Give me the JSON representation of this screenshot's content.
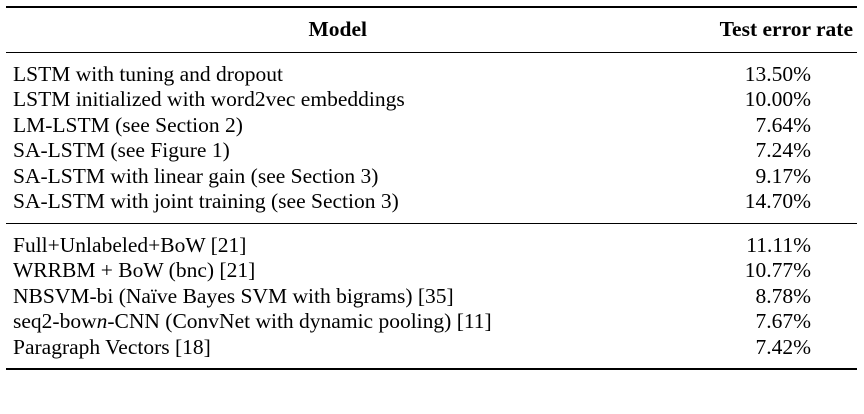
{
  "header": {
    "model": "Model",
    "test_error_rate": "Test error rate"
  },
  "group_a": [
    {
      "model": "LSTM with tuning and dropout",
      "error": "13.50%"
    },
    {
      "model": "LSTM initialized with word2vec embeddings",
      "error": "10.00%"
    },
    {
      "model": "LM-LSTM (see Section 2)",
      "error": "7.64%"
    },
    {
      "model": "SA-LSTM (see Figure 1)",
      "error": "7.24%"
    },
    {
      "model": "SA-LSTM with linear gain (see Section 3)",
      "error": "9.17%"
    },
    {
      "model": "SA-LSTM with joint training (see Section 3)",
      "error": "14.70%"
    }
  ],
  "group_b": [
    {
      "model": "Full+Unlabeled+BoW [21]",
      "error": "11.11%"
    },
    {
      "model": "WRRBM + BoW (bnc) [21]",
      "error": "10.77%"
    },
    {
      "model": "NBSVM-bi (Naïve Bayes SVM with bigrams) [35]",
      "error": "8.78%"
    },
    {
      "model_pre": "seq2-bow",
      "model_italic": "n",
      "model_post": "-CNN (ConvNet with dynamic pooling) [11]",
      "error": "7.67%"
    },
    {
      "model": "Paragraph Vectors [18]",
      "error": "7.42%"
    }
  ]
}
